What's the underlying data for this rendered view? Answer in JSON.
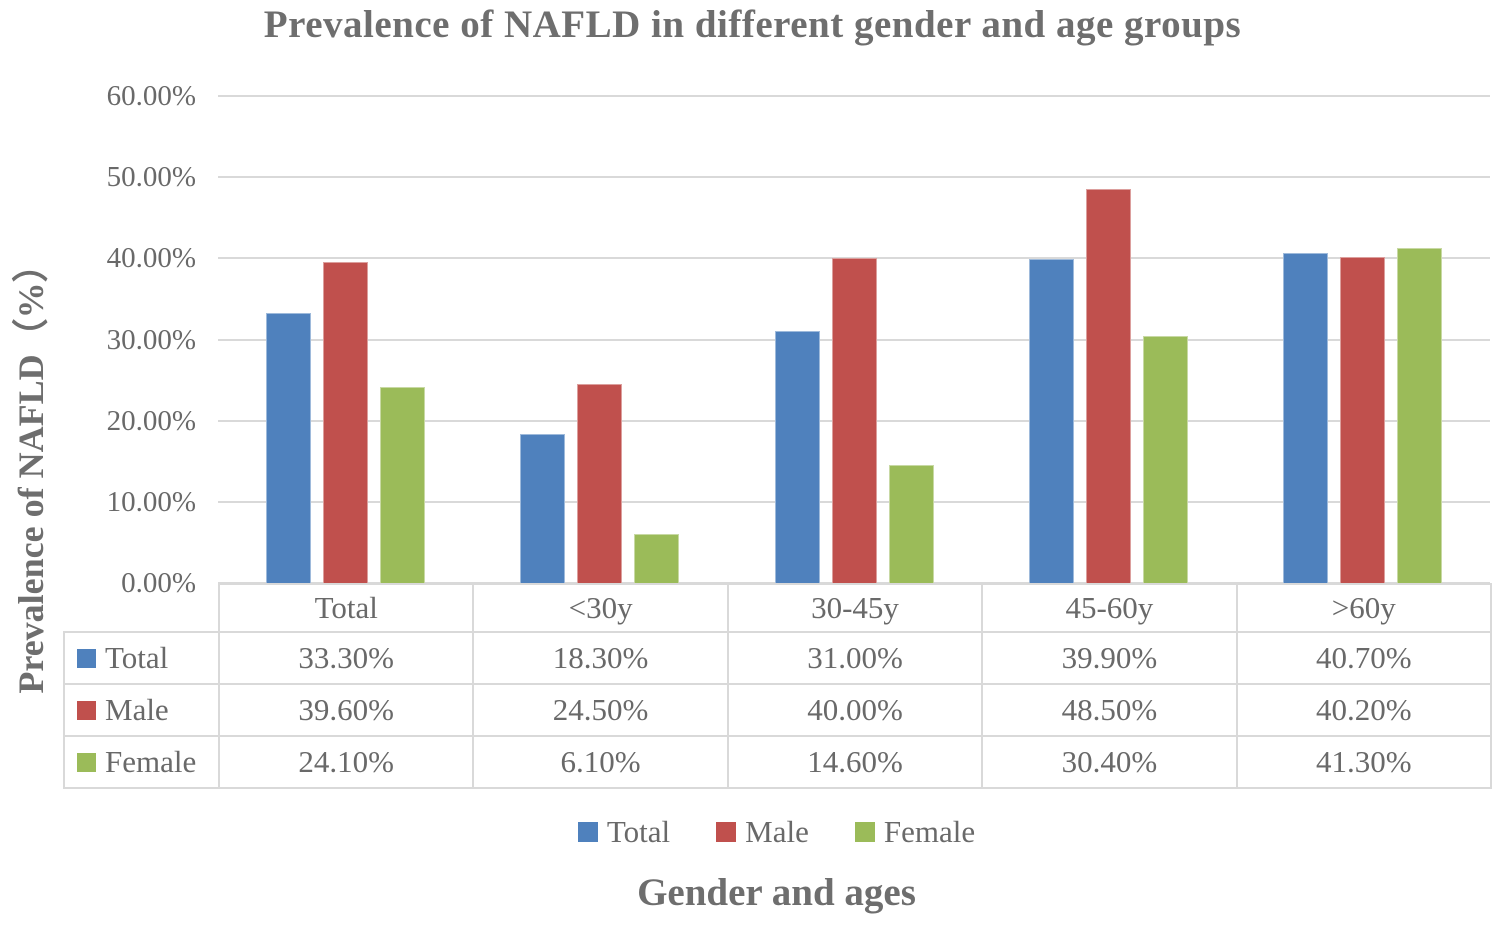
{
  "chart_data": {
    "type": "bar",
    "title": "Prevalence of NAFLD in different gender and age groups",
    "xlabel": "Gender and ages",
    "ylabel": "Prevalence of NAFLD（%）",
    "ylim": [
      0,
      60
    ],
    "ytick_step": 10,
    "ytick_labels": [
      "0.00%",
      "10.00%",
      "20.00%",
      "30.00%",
      "40.00%",
      "50.00%",
      "60.00%"
    ],
    "grid": true,
    "legend_position": "bottom",
    "data_table_shown": true,
    "categories": [
      "Total",
      "<30y",
      "30-45y",
      "45-60y",
      ">60y"
    ],
    "series": [
      {
        "name": "Total",
        "color": "#4F81BD",
        "values": [
          33.3,
          18.3,
          31.0,
          39.9,
          40.7
        ],
        "display": [
          "33.30%",
          "18.30%",
          "31.00%",
          "39.90%",
          "40.70%"
        ]
      },
      {
        "name": "Male",
        "color": "#C0504D",
        "values": [
          39.6,
          24.5,
          40.0,
          48.5,
          40.2
        ],
        "display": [
          "39.60%",
          "24.50%",
          "40.00%",
          "48.50%",
          "40.20%"
        ]
      },
      {
        "name": "Female",
        "color": "#9BBB59",
        "values": [
          24.1,
          6.1,
          14.6,
          30.4,
          41.3
        ],
        "display": [
          "24.10%",
          "6.10%",
          "14.60%",
          "30.40%",
          "41.30%"
        ]
      }
    ]
  },
  "colors": {
    "text": "#696969",
    "title_text": "#6e6e6e",
    "gridline": "#d9d9d9",
    "table_border": "#d9d9d9",
    "background": "#ffffff"
  }
}
